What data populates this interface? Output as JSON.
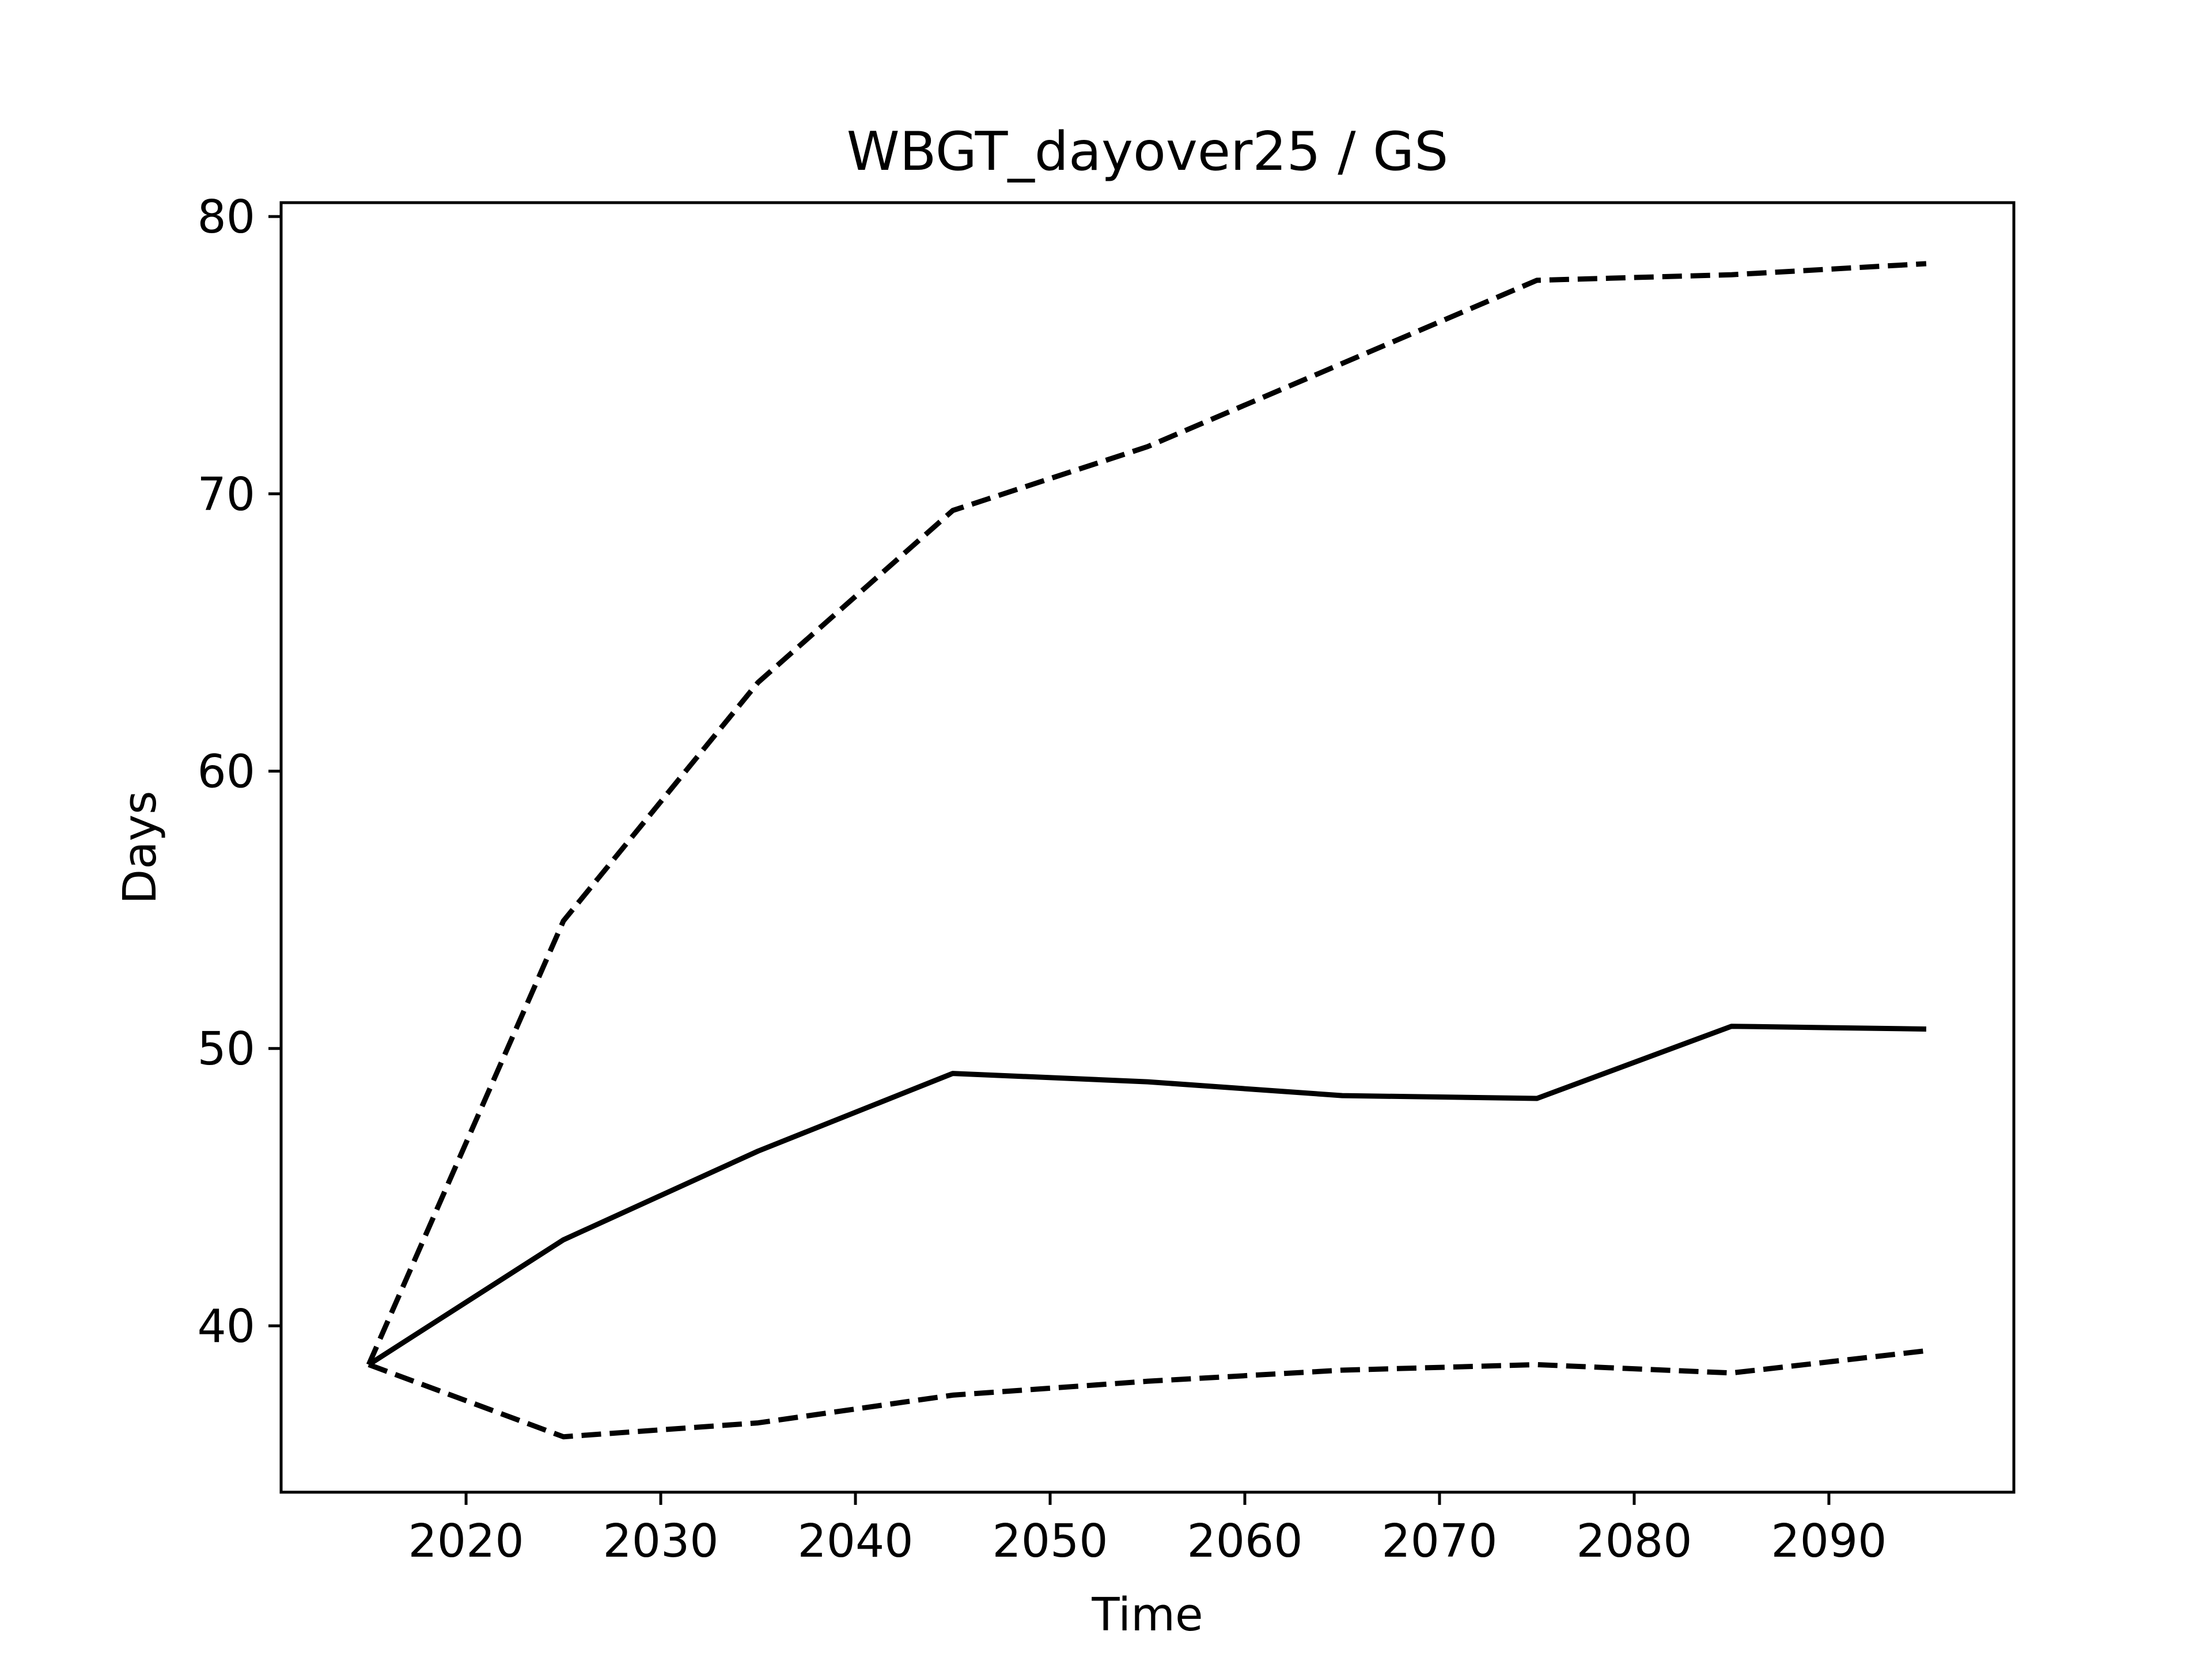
{
  "chart_data": {
    "type": "line",
    "title": "WBGT_dayover25 / GS",
    "xlabel": "Time",
    "ylabel": "Days",
    "xlim": [
      2010.5,
      2099.5
    ],
    "ylim": [
      34,
      80.5
    ],
    "xticks": [
      2020,
      2030,
      2040,
      2050,
      2060,
      2070,
      2080,
      2090
    ],
    "yticks": [
      40,
      50,
      60,
      70,
      80
    ],
    "grid": false,
    "legend": "none",
    "x": [
      2015,
      2025,
      2035,
      2045,
      2055,
      2065,
      2075,
      2085,
      2095
    ],
    "series": [
      {
        "style": "solid",
        "color": "#000000",
        "values": [
          38.6,
          43.1,
          46.3,
          49.1,
          48.8,
          48.3,
          48.2,
          50.8,
          50.7
        ]
      },
      {
        "style": "dashed",
        "color": "#000000",
        "values": [
          38.6,
          54.6,
          63.2,
          69.4,
          71.7,
          74.7,
          77.7,
          77.9,
          78.3
        ]
      },
      {
        "style": "dashed",
        "color": "#000000",
        "values": [
          38.6,
          36.0,
          36.5,
          37.5,
          38.0,
          38.4,
          38.6,
          38.3,
          39.1
        ]
      }
    ]
  }
}
